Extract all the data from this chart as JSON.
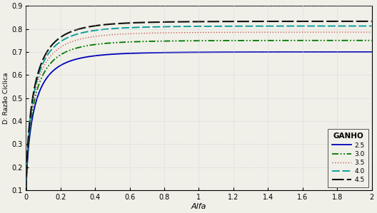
{
  "xlabel": "Alfa",
  "ylabel": "D: Razão Cíclica",
  "xlim": [
    0,
    2.0
  ],
  "ylim": [
    0.1,
    0.9
  ],
  "xticks": [
    0,
    0.2,
    0.4,
    0.6,
    0.8,
    1.0,
    1.2,
    1.4,
    1.6,
    1.8,
    2.0
  ],
  "yticks": [
    0.1,
    0.2,
    0.3,
    0.4,
    0.5,
    0.6,
    0.7,
    0.8,
    0.9
  ],
  "gains": [
    2.5,
    3.0,
    3.5,
    4.0,
    4.5
  ],
  "d_inf_values": [
    0.7,
    0.75,
    0.786,
    0.8125,
    0.833
  ],
  "legend_title": "GANHO",
  "legend_labels": [
    "2.5",
    "3.0",
    "3.5",
    "4.0",
    "4.5"
  ],
  "line_colors": [
    "#0000bb",
    "#007700",
    "#cc3333",
    "#009999",
    "#111111"
  ],
  "line_widths": [
    1.3,
    1.3,
    0.9,
    1.3,
    1.5
  ],
  "k_tanh": 3.5,
  "background_color": "#f0f0e8",
  "grid_color": "#c8c8d8",
  "n_points": 3000,
  "alpha_min": 0.0001,
  "alpha_max": 2.0,
  "fig_width": 5.28,
  "fig_height": 2.99,
  "dpi": 100
}
